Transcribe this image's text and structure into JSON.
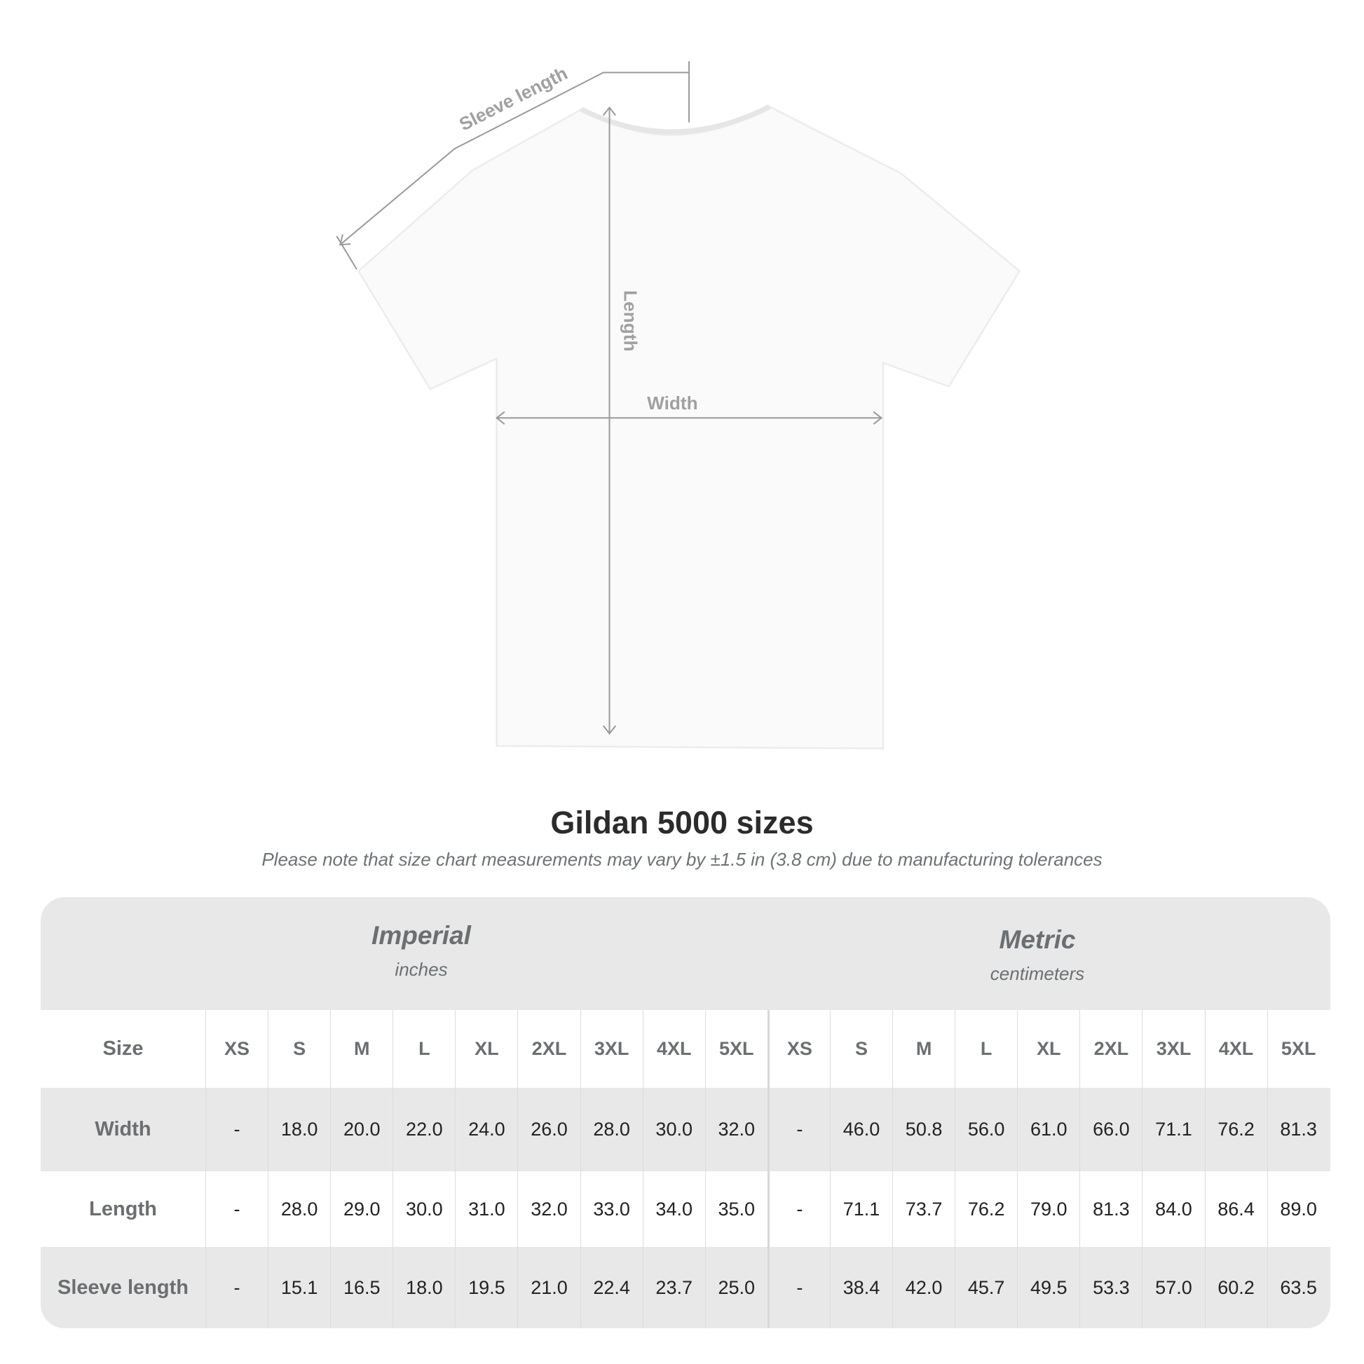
{
  "diagram": {
    "sleeve_label": "Sleeve length",
    "length_label": "Length",
    "width_label": "Width"
  },
  "title": "Gildan 5000 sizes",
  "note": "Please note that size chart measurements may vary by ±1.5 in (3.8 cm) due to manufacturing tolerances",
  "imperial": {
    "name": "Imperial",
    "unit": "inches"
  },
  "metric": {
    "name": "Metric",
    "unit": "centimeters"
  },
  "size_label": "Size",
  "sizes": [
    "XS",
    "S",
    "M",
    "L",
    "XL",
    "2XL",
    "3XL",
    "4XL",
    "5XL"
  ],
  "rows": [
    {
      "label": "Width",
      "imperial": [
        "-",
        "18.0",
        "20.0",
        "22.0",
        "24.0",
        "26.0",
        "28.0",
        "30.0",
        "32.0"
      ],
      "metric": [
        "-",
        "46.0",
        "50.8",
        "56.0",
        "61.0",
        "66.0",
        "71.1",
        "76.2",
        "81.3"
      ]
    },
    {
      "label": "Length",
      "imperial": [
        "-",
        "28.0",
        "29.0",
        "30.0",
        "31.0",
        "32.0",
        "33.0",
        "34.0",
        "35.0"
      ],
      "metric": [
        "-",
        "71.1",
        "73.7",
        "76.2",
        "79.0",
        "81.3",
        "84.0",
        "86.4",
        "89.0"
      ]
    },
    {
      "label": "Sleeve length",
      "imperial": [
        "-",
        "15.1",
        "16.5",
        "18.0",
        "19.5",
        "21.0",
        "22.4",
        "23.7",
        "25.0"
      ],
      "metric": [
        "-",
        "38.4",
        "42.0",
        "45.7",
        "49.5",
        "53.3",
        "57.0",
        "60.2",
        "63.5"
      ]
    }
  ]
}
